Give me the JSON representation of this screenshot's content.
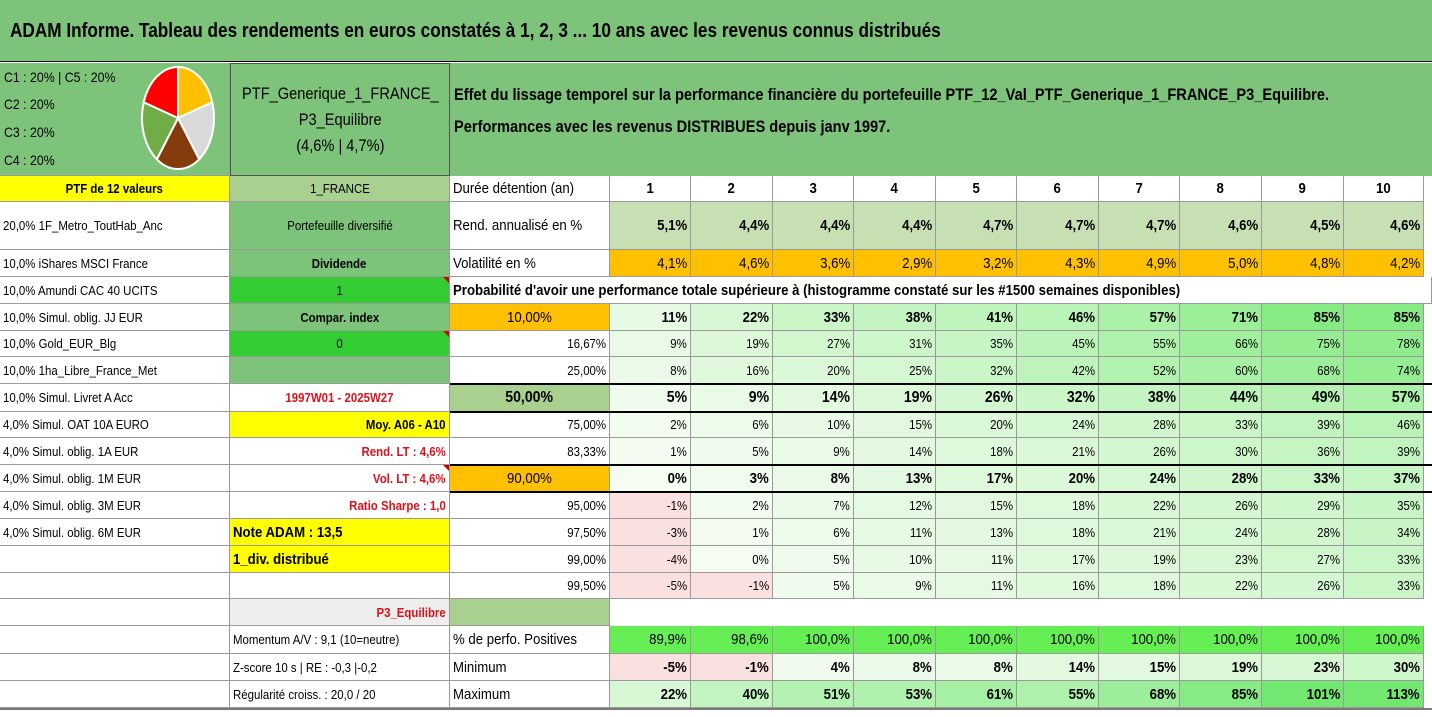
{
  "title": "ADAM Informe. Tableau des rendements en euros constatés à 1, 2, 3 ... 10 ans avec les revenus connus distribués",
  "legend": [
    "C1 : 20% | C5 : 20%",
    "C2 : 20%",
    "C3 : 20%",
    "C4 : 20%"
  ],
  "pie": {
    "values": [
      20,
      20,
      20,
      20,
      20
    ],
    "colors": [
      "#ffc000",
      "#d9d9d9",
      "#843c0c",
      "#70ad47",
      "#ff0000"
    ]
  },
  "portfolio": {
    "name_line1": "PTF_Generique_1_FRANCE_",
    "name_line2": "P3_Equilibre",
    "name_line3": "(4,6% | 4,7%)"
  },
  "description": {
    "line1": "Effet du lissage temporel sur la performance financière du portefeuille PTF_12_Val_PTF_Generique_1_FRANCE_P3_Equilibre.",
    "line2": "Performances avec les revenus DISTRIBUES depuis janv 1997."
  },
  "colors": {
    "title_bg": "#7dc47a",
    "yellow": "#ffff00",
    "bright_green": "#33cc33",
    "orange": "#ffc000",
    "light_olive": "#c6e0b4",
    "pale_green": "#a9d08e",
    "red_text": "#e0101a"
  },
  "rows": [
    {
      "left": "PTF de 12 valeurs",
      "mid": "1_FRANCE",
      "label": "Durée détention (an)",
      "values": [
        "1",
        "2",
        "3",
        "4",
        "5",
        "6",
        "7",
        "8",
        "9",
        "10"
      ]
    },
    {
      "left": "20,0% 1F_Metro_ToutHab_Anc",
      "mid": "Portefeuille diversifié",
      "label": "Rend. annualisé en %",
      "values": [
        "5,1%",
        "4,4%",
        "4,4%",
        "4,4%",
        "4,7%",
        "4,7%",
        "4,7%",
        "4,6%",
        "4,5%",
        "4,6%"
      ]
    },
    {
      "left": "10,0% iShares MSCI France",
      "mid": "Dividende",
      "label": "Volatilité en %",
      "values": [
        "4,1%",
        "4,6%",
        "3,6%",
        "2,9%",
        "3,2%",
        "4,3%",
        "4,9%",
        "5,0%",
        "4,8%",
        "4,2%"
      ]
    },
    {
      "left": "10,0% Amundi CAC 40 UCITS",
      "mid": "1",
      "label": "Probabilité d'avoir une performance totale supérieure à (histogramme constaté sur les #1500 semaines disponibles)",
      "values": []
    },
    {
      "left": "10,0% Simul. oblig. JJ EUR",
      "mid": "Compar. index",
      "label": "10,00%",
      "values": [
        "11%",
        "22%",
        "33%",
        "38%",
        "41%",
        "46%",
        "57%",
        "71%",
        "85%",
        "85%"
      ]
    },
    {
      "left": "10,0% Gold_EUR_Blg",
      "mid": "0",
      "label": "16,67%",
      "values": [
        "9%",
        "19%",
        "27%",
        "31%",
        "35%",
        "45%",
        "55%",
        "66%",
        "75%",
        "78%"
      ]
    },
    {
      "left": "10,0% 1ha_Libre_France_Met",
      "mid": "",
      "label": "25,00%",
      "values": [
        "8%",
        "16%",
        "20%",
        "25%",
        "32%",
        "42%",
        "52%",
        "60%",
        "68%",
        "74%"
      ]
    },
    {
      "left": "10,0% Simul. Livret A Acc",
      "mid": "1997W01 - 2025W27",
      "label": "50,00%",
      "values": [
        "5%",
        "9%",
        "14%",
        "19%",
        "26%",
        "32%",
        "38%",
        "44%",
        "49%",
        "57%"
      ]
    },
    {
      "left": "4,0% Simul. OAT 10A EURO",
      "mid": "Moy. A06 - A10",
      "label": "75,00%",
      "values": [
        "2%",
        "6%",
        "10%",
        "15%",
        "20%",
        "24%",
        "28%",
        "33%",
        "39%",
        "46%"
      ]
    },
    {
      "left": "4,0% Simul. oblig. 1A EUR",
      "mid": "Rend. LT : 4,6%",
      "label": "83,33%",
      "values": [
        "1%",
        "5%",
        "9%",
        "14%",
        "18%",
        "21%",
        "26%",
        "30%",
        "36%",
        "39%"
      ]
    },
    {
      "left": "4,0% Simul. oblig. 1M EUR",
      "mid": "Vol. LT : 4,6%",
      "label": "90,00%",
      "values": [
        "0%",
        "3%",
        "8%",
        "13%",
        "17%",
        "20%",
        "24%",
        "28%",
        "33%",
        "37%"
      ]
    },
    {
      "left": "4,0% Simul. oblig. 3M EUR",
      "mid": "Ratio Sharpe : 1,0",
      "label": "95,00%",
      "values": [
        "-1%",
        "2%",
        "7%",
        "12%",
        "15%",
        "18%",
        "22%",
        "26%",
        "29%",
        "35%"
      ]
    },
    {
      "left": "4,0% Simul. oblig. 6M EUR",
      "mid": "Note ADAM : 13,5",
      "label": "97,50%",
      "values": [
        "-3%",
        "1%",
        "6%",
        "11%",
        "13%",
        "18%",
        "21%",
        "24%",
        "28%",
        "34%"
      ]
    },
    {
      "left": "",
      "mid": "1_div. distribué",
      "label": "99,00%",
      "values": [
        "-4%",
        "0%",
        "5%",
        "10%",
        "11%",
        "17%",
        "19%",
        "23%",
        "27%",
        "33%"
      ]
    },
    {
      "left": "",
      "mid": "",
      "label": "99,50%",
      "values": [
        "-5%",
        "-1%",
        "5%",
        "9%",
        "11%",
        "16%",
        "18%",
        "22%",
        "26%",
        "33%"
      ]
    },
    {
      "left": "",
      "mid": "P3_Equilibre",
      "label": "",
      "values": []
    },
    {
      "left": "",
      "mid": "Momentum A/V : 9,1 (10=neutre)",
      "label": "% de perfo. Positives",
      "values": [
        "89,9%",
        "98,6%",
        "100,0%",
        "100,0%",
        "100,0%",
        "100,0%",
        "100,0%",
        "100,0%",
        "100,0%",
        "100,0%"
      ]
    },
    {
      "left": "",
      "mid": "Z-score 10 s | RE : -0,3 |-0,2",
      "label": "Minimum",
      "values": [
        "-5%",
        "-1%",
        "4%",
        "8%",
        "8%",
        "14%",
        "15%",
        "19%",
        "23%",
        "30%"
      ]
    },
    {
      "left": "",
      "mid": "Régularité croiss. : 20,0 / 20",
      "label": "Maximum",
      "values": [
        "22%",
        "40%",
        "51%",
        "53%",
        "61%",
        "55%",
        "68%",
        "85%",
        "101%",
        "113%"
      ]
    }
  ]
}
